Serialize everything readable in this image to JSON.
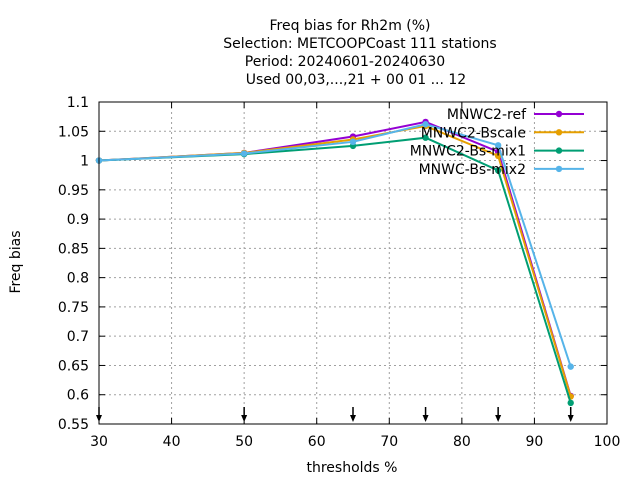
{
  "chart_data": {
    "type": "line",
    "title_lines": [
      "Freq bias  for Rh2m (%)",
      "Selection: METCOOPCoast    111 stations",
      "Period: 20240601-20240630",
      "Used 00,03,...,21 + 00 01 ... 12"
    ],
    "xlabel": "thresholds %",
    "ylabel": "Freq bias",
    "xlim": [
      30,
      100
    ],
    "ylim": [
      0.55,
      1.1
    ],
    "xticks": [
      "30",
      "40",
      "50",
      "60",
      "70",
      "80",
      "90",
      "100"
    ],
    "yticks": [
      "0.55",
      "0.6",
      "0.65",
      "0.7",
      "0.75",
      "0.8",
      "0.85",
      "0.9",
      "0.95",
      "1",
      "1.05",
      "1.1"
    ],
    "grid": true,
    "legend_position": "top-right",
    "threshold_markers": [
      30,
      50,
      65,
      75,
      85,
      95
    ],
    "x": [
      30,
      50,
      65,
      75,
      85,
      95
    ],
    "series": [
      {
        "name": "MNWC2-ref",
        "color": "#9400d3",
        "values": [
          1.0,
          1.013,
          1.041,
          1.066,
          1.015,
          0.598
        ]
      },
      {
        "name": "MNWC2-Bscale",
        "color": "#e69f00",
        "values": [
          1.0,
          1.013,
          1.036,
          1.059,
          1.008,
          0.597
        ]
      },
      {
        "name": "MNWC2-Bs-mix1",
        "color": "#009e73",
        "values": [
          1.0,
          1.011,
          1.025,
          1.039,
          0.983,
          0.586
        ]
      },
      {
        "name": "MNWC-Bs-mix2",
        "color": "#56b4e9",
        "values": [
          1.0,
          1.012,
          1.032,
          1.062,
          1.026,
          0.648
        ]
      }
    ]
  }
}
